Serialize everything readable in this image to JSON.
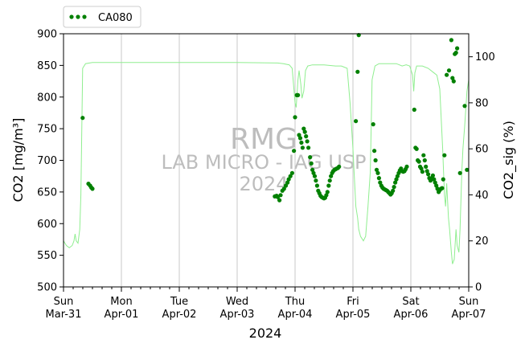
{
  "chart_data": {
    "type": "scatter",
    "legend": {
      "placement": "top-left, above plot",
      "label": "CA080"
    },
    "xlabel": "2024",
    "ylabel_left": "CO2 [mg/m³]",
    "ylabel_right": "CO2_sig (%)",
    "xlim": [
      0,
      7
    ],
    "ylim_left": [
      500,
      900
    ],
    "ylim_right": [
      0,
      110
    ],
    "x_ticks": [
      {
        "x": 0,
        "day": "Sun",
        "date": "Mar-31"
      },
      {
        "x": 1,
        "day": "Mon",
        "date": "Apr-01"
      },
      {
        "x": 2,
        "day": "Tue",
        "date": "Apr-02"
      },
      {
        "x": 3,
        "day": "Wed",
        "date": "Apr-03"
      },
      {
        "x": 4,
        "day": "Thu",
        "date": "Apr-04"
      },
      {
        "x": 5,
        "day": "Fri",
        "date": "Apr-05"
      },
      {
        "x": 6,
        "day": "Sat",
        "date": "Apr-06"
      },
      {
        "x": 7,
        "day": "Sun",
        "date": "Apr-07"
      }
    ],
    "y_ticks_left": [
      500,
      550,
      600,
      650,
      700,
      750,
      800,
      850,
      900
    ],
    "y_ticks_right": [
      0,
      20,
      40,
      60,
      80,
      100
    ],
    "grid": "vertical major gridlines",
    "colors": {
      "co2": "#008000",
      "signal": "#90ee90",
      "grid": "#c8c8c8",
      "watermark": "#bdbdbd"
    },
    "watermark": [
      "RMG",
      "LAB MICRO - IAG USP",
      "2024"
    ],
    "series": [
      {
        "name": "CA080",
        "axis": "left",
        "marker": "dot",
        "points": [
          [
            0.33,
            767
          ],
          [
            0.43,
            663
          ],
          [
            0.46,
            660
          ],
          [
            0.48,
            657
          ],
          [
            0.5,
            655
          ],
          [
            3.65,
            643
          ],
          [
            3.68,
            644
          ],
          [
            3.7,
            642
          ],
          [
            3.73,
            637
          ],
          [
            3.75,
            645
          ],
          [
            3.78,
            652
          ],
          [
            3.81,
            655
          ],
          [
            3.84,
            660
          ],
          [
            3.87,
            665
          ],
          [
            3.89,
            670
          ],
          [
            3.92,
            675
          ],
          [
            3.95,
            680
          ],
          [
            3.98,
            715
          ],
          [
            4.0,
            768
          ],
          [
            4.03,
            803
          ],
          [
            4.05,
            803
          ],
          [
            4.07,
            740
          ],
          [
            4.09,
            735
          ],
          [
            4.11,
            728
          ],
          [
            4.13,
            720
          ],
          [
            4.15,
            750
          ],
          [
            4.17,
            745
          ],
          [
            4.19,
            738
          ],
          [
            4.21,
            730
          ],
          [
            4.23,
            720
          ],
          [
            4.26,
            705
          ],
          [
            4.28,
            695
          ],
          [
            4.3,
            685
          ],
          [
            4.32,
            680
          ],
          [
            4.34,
            675
          ],
          [
            4.36,
            668
          ],
          [
            4.38,
            660
          ],
          [
            4.4,
            652
          ],
          [
            4.42,
            648
          ],
          [
            4.44,
            644
          ],
          [
            4.46,
            642
          ],
          [
            4.48,
            641
          ],
          [
            4.5,
            640
          ],
          [
            4.52,
            641
          ],
          [
            4.54,
            645
          ],
          [
            4.56,
            650
          ],
          [
            4.58,
            660
          ],
          [
            4.6,
            668
          ],
          [
            4.62,
            675
          ],
          [
            4.64,
            680
          ],
          [
            4.66,
            683
          ],
          [
            4.68,
            685
          ],
          [
            4.7,
            686
          ],
          [
            4.72,
            687
          ],
          [
            4.74,
            688
          ],
          [
            4.76,
            690
          ],
          [
            5.05,
            762
          ],
          [
            5.08,
            840
          ],
          [
            5.1,
            898
          ],
          [
            5.35,
            757
          ],
          [
            5.37,
            715
          ],
          [
            5.39,
            700
          ],
          [
            5.41,
            685
          ],
          [
            5.43,
            680
          ],
          [
            5.45,
            672
          ],
          [
            5.47,
            665
          ],
          [
            5.49,
            660
          ],
          [
            5.51,
            657
          ],
          [
            5.53,
            655
          ],
          [
            5.55,
            654
          ],
          [
            5.57,
            653
          ],
          [
            5.59,
            652
          ],
          [
            5.61,
            650
          ],
          [
            5.63,
            648
          ],
          [
            5.65,
            646
          ],
          [
            5.67,
            648
          ],
          [
            5.69,
            652
          ],
          [
            5.71,
            658
          ],
          [
            5.73,
            665
          ],
          [
            5.75,
            670
          ],
          [
            5.77,
            675
          ],
          [
            5.79,
            680
          ],
          [
            5.81,
            684
          ],
          [
            5.83,
            687
          ],
          [
            5.85,
            683
          ],
          [
            5.87,
            682
          ],
          [
            5.89,
            683
          ],
          [
            5.91,
            686
          ],
          [
            5.93,
            690
          ],
          [
            6.06,
            780
          ],
          [
            6.08,
            720
          ],
          [
            6.1,
            718
          ],
          [
            6.12,
            700
          ],
          [
            6.14,
            698
          ],
          [
            6.16,
            690
          ],
          [
            6.18,
            687
          ],
          [
            6.2,
            682
          ],
          [
            6.22,
            708
          ],
          [
            6.24,
            700
          ],
          [
            6.26,
            690
          ],
          [
            6.28,
            683
          ],
          [
            6.3,
            678
          ],
          [
            6.32,
            672
          ],
          [
            6.34,
            668
          ],
          [
            6.36,
            672
          ],
          [
            6.38,
            676
          ],
          [
            6.4,
            670
          ],
          [
            6.42,
            665
          ],
          [
            6.44,
            660
          ],
          [
            6.46,
            655
          ],
          [
            6.48,
            650
          ],
          [
            6.5,
            653
          ],
          [
            6.52,
            655
          ],
          [
            6.54,
            656
          ],
          [
            6.56,
            670
          ],
          [
            6.58,
            708
          ],
          [
            6.62,
            835
          ],
          [
            6.66,
            842
          ],
          [
            6.7,
            890
          ],
          [
            6.72,
            830
          ],
          [
            6.74,
            825
          ],
          [
            6.76,
            868
          ],
          [
            6.78,
            870
          ],
          [
            6.8,
            877
          ],
          [
            6.85,
            680
          ],
          [
            6.93,
            786
          ],
          [
            6.97,
            685
          ]
        ]
      },
      {
        "name": "CO2_sig",
        "axis": "right",
        "marker": "line",
        "points": [
          [
            0.0,
            20
          ],
          [
            0.05,
            18
          ],
          [
            0.1,
            17
          ],
          [
            0.15,
            18
          ],
          [
            0.18,
            20
          ],
          [
            0.2,
            23
          ],
          [
            0.22,
            20
          ],
          [
            0.25,
            19
          ],
          [
            0.28,
            25
          ],
          [
            0.3,
            40
          ],
          [
            0.33,
            95
          ],
          [
            0.38,
            97
          ],
          [
            0.5,
            97.5
          ],
          [
            1.0,
            97.5
          ],
          [
            2.0,
            97.5
          ],
          [
            3.0,
            97.5
          ],
          [
            3.7,
            97.3
          ],
          [
            3.8,
            97.0
          ],
          [
            3.9,
            96.5
          ],
          [
            3.95,
            95
          ],
          [
            4.0,
            80
          ],
          [
            4.02,
            78
          ],
          [
            4.05,
            90
          ],
          [
            4.07,
            94
          ],
          [
            4.1,
            88
          ],
          [
            4.12,
            82
          ],
          [
            4.15,
            85
          ],
          [
            4.18,
            94
          ],
          [
            4.22,
            96
          ],
          [
            4.3,
            96.5
          ],
          [
            4.5,
            96.5
          ],
          [
            4.7,
            96
          ],
          [
            4.8,
            96
          ],
          [
            4.9,
            95
          ],
          [
            4.95,
            80
          ],
          [
            5.0,
            60
          ],
          [
            5.02,
            50
          ],
          [
            5.05,
            35
          ],
          [
            5.08,
            30
          ],
          [
            5.1,
            25
          ],
          [
            5.13,
            22
          ],
          [
            5.18,
            20
          ],
          [
            5.22,
            22
          ],
          [
            5.26,
            35
          ],
          [
            5.3,
            50
          ],
          [
            5.33,
            90
          ],
          [
            5.38,
            96
          ],
          [
            5.45,
            97
          ],
          [
            5.6,
            97
          ],
          [
            5.75,
            97
          ],
          [
            5.85,
            96
          ],
          [
            5.92,
            96.5
          ],
          [
            5.98,
            96
          ],
          [
            6.03,
            92
          ],
          [
            6.05,
            85
          ],
          [
            6.07,
            93
          ],
          [
            6.1,
            96
          ],
          [
            6.2,
            96
          ],
          [
            6.3,
            95
          ],
          [
            6.4,
            93
          ],
          [
            6.45,
            92
          ],
          [
            6.5,
            86
          ],
          [
            6.55,
            60
          ],
          [
            6.58,
            40
          ],
          [
            6.6,
            35
          ],
          [
            6.62,
            45
          ],
          [
            6.65,
            30
          ],
          [
            6.67,
            25
          ],
          [
            6.7,
            15
          ],
          [
            6.72,
            10
          ],
          [
            6.75,
            12
          ],
          [
            6.78,
            25
          ],
          [
            6.8,
            18
          ],
          [
            6.83,
            15
          ],
          [
            6.85,
            25
          ],
          [
            6.88,
            50
          ],
          [
            6.9,
            60
          ],
          [
            6.93,
            70
          ],
          [
            6.97,
            85
          ],
          [
            7.0,
            90
          ]
        ]
      }
    ]
  }
}
